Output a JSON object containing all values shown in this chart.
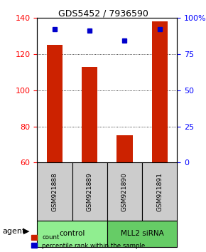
{
  "title": "GDS5452 / 7936590",
  "samples": [
    "GSM921888",
    "GSM921889",
    "GSM921890",
    "GSM921891"
  ],
  "bar_values": [
    125,
    113,
    75,
    138
  ],
  "percentile_values": [
    92,
    91,
    84,
    92
  ],
  "bar_color": "#cc2200",
  "percentile_color": "#0000cc",
  "ylim_left": [
    60,
    140
  ],
  "yticks_left": [
    60,
    80,
    100,
    120,
    140
  ],
  "ylim_right": [
    0,
    100
  ],
  "yticks_right": [
    0,
    25,
    50,
    75,
    100
  ],
  "yticklabels_right": [
    "0",
    "25",
    "50",
    "75",
    "100%"
  ],
  "groups": [
    {
      "label": "control",
      "indices": [
        0,
        1
      ],
      "color": "#90ee90"
    },
    {
      "label": "MLL2 siRNA",
      "indices": [
        2,
        3
      ],
      "color": "#66cc66"
    }
  ],
  "agent_label": "agent",
  "legend_count_label": "count",
  "legend_percentile_label": "percentile rank within the sample",
  "grid_color": "#000000",
  "dotted_line_color": "#000000",
  "sample_box_color": "#cccccc",
  "background_color": "#ffffff"
}
